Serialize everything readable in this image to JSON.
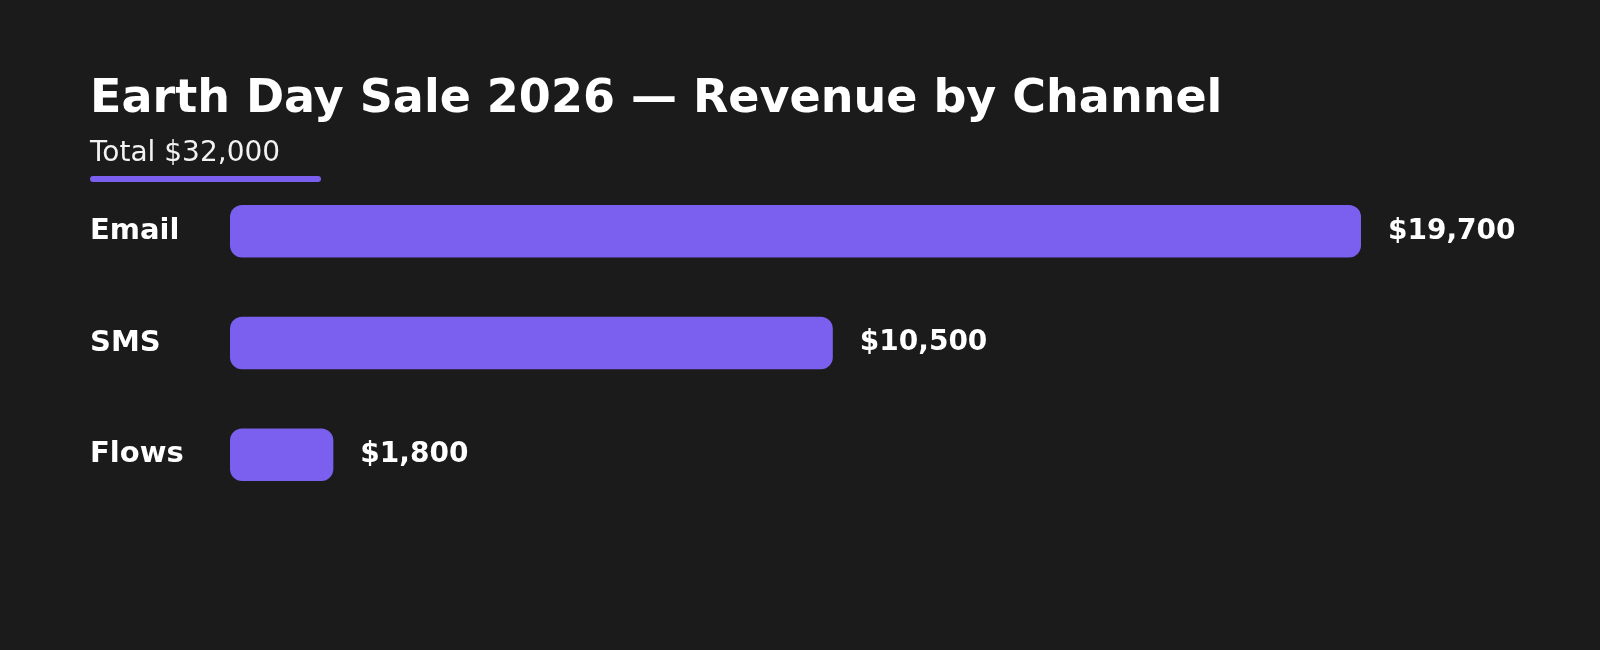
{
  "chart_data": {
    "type": "bar",
    "orientation": "horizontal",
    "title": "Earth Day Sale 2026 — Revenue by Channel",
    "subtitle": "Total $32,000",
    "categories": [
      "Email",
      "SMS",
      "Flows"
    ],
    "values": [
      19700,
      10500,
      1800
    ],
    "value_labels": [
      "$19,700",
      "$10,500",
      "$1,800"
    ],
    "color": "#7b5fee",
    "legend": false
  }
}
